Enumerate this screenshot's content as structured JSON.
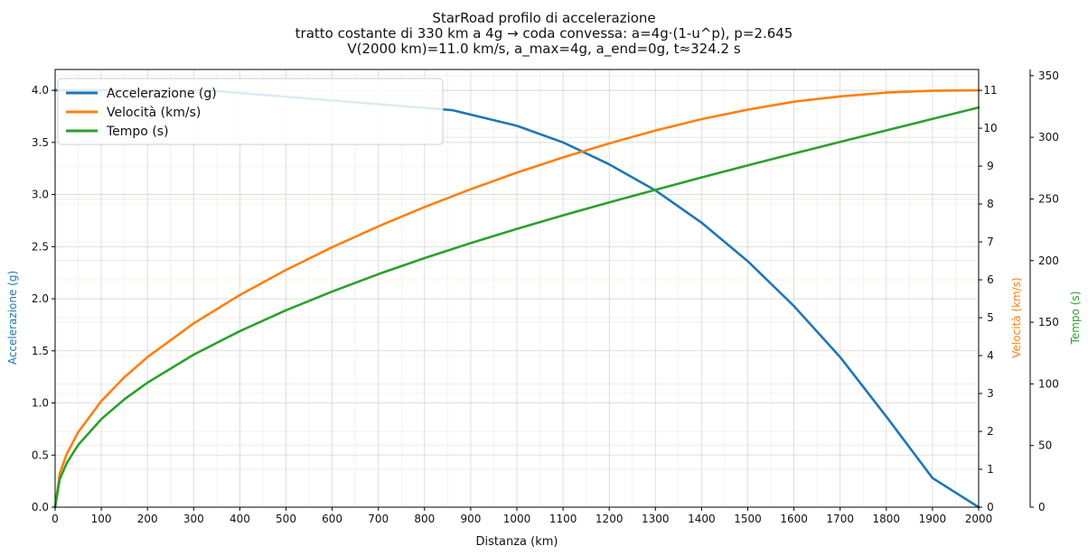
{
  "chart_data": {
    "type": "line",
    "title": "StarRoad profilo di accelerazione",
    "subtitle_line1": "tratto costante di 330 km a 4g → coda convessa: a=4g·(1-u^p), p=2.645",
    "subtitle_line2": "V(2000 km)=11.0 km/s, a_max=4g, a_end=0g, t≈324.2 s",
    "xlabel": "Distanza (km)",
    "xlim": [
      0,
      2000
    ],
    "xticks": [
      "0",
      "100",
      "200",
      "300",
      "400",
      "500",
      "600",
      "700",
      "800",
      "900",
      "1000",
      "1100",
      "1200",
      "1300",
      "1400",
      "1500",
      "1600",
      "1700",
      "1800",
      "1900",
      "2000"
    ],
    "axes": {
      "left": {
        "label": "Accelerazione (g)",
        "color": "#1f77b4",
        "lim": [
          0,
          4.2
        ],
        "ticks": [
          "0.0",
          "0.5",
          "1.0",
          "1.5",
          "2.0",
          "2.5",
          "3.0",
          "3.5",
          "4.0"
        ]
      },
      "right1": {
        "label": "Velocità (km/s)",
        "color": "#ff7f0e",
        "lim": [
          0,
          11.55
        ],
        "ticks": [
          "0",
          "1",
          "2",
          "3",
          "4",
          "5",
          "6",
          "7",
          "8",
          "9",
          "10",
          "11"
        ]
      },
      "right2": {
        "label": "Tempo (s)",
        "color": "#2ca02c",
        "lim": [
          0,
          355
        ],
        "ticks": [
          "0",
          "50",
          "100",
          "150",
          "200",
          "250",
          "300",
          "350"
        ]
      }
    },
    "grid": true,
    "legend_position": "top-left",
    "series": [
      {
        "name": "Accelerazione (g)",
        "axis": "left",
        "color": "#1f77b4",
        "x": [
          0,
          330,
          860,
          1000,
          1100,
          1200,
          1300,
          1400,
          1500,
          1600,
          1700,
          1800,
          1900,
          2000
        ],
        "y": [
          4.0,
          4.0,
          3.81,
          3.66,
          3.5,
          3.29,
          3.04,
          2.73,
          2.36,
          1.93,
          1.44,
          0.87,
          0.28,
          0.0
        ]
      },
      {
        "name": "Velocità (km/s)",
        "axis": "right1",
        "color": "#ff7f0e",
        "x": [
          0,
          10,
          25,
          50,
          100,
          150,
          200,
          300,
          400,
          500,
          600,
          700,
          800,
          900,
          1000,
          1100,
          1200,
          1300,
          1400,
          1500,
          1600,
          1700,
          1800,
          1900,
          2000
        ],
        "y": [
          0,
          0.89,
          1.4,
          1.98,
          2.8,
          3.43,
          3.96,
          4.85,
          5.6,
          6.26,
          6.86,
          7.41,
          7.92,
          8.39,
          8.83,
          9.23,
          9.6,
          9.94,
          10.24,
          10.49,
          10.7,
          10.84,
          10.94,
          10.99,
          11.0
        ]
      },
      {
        "name": "Tempo (s)",
        "axis": "right2",
        "color": "#2ca02c",
        "x": [
          0,
          10,
          25,
          50,
          100,
          150,
          200,
          300,
          400,
          500,
          600,
          700,
          800,
          900,
          1000,
          1100,
          1200,
          1300,
          1400,
          1500,
          1600,
          1700,
          1800,
          1900,
          2000
        ],
        "y": [
          0,
          22.6,
          35.7,
          50.5,
          71.4,
          87.5,
          101.0,
          123.7,
          142.8,
          159.7,
          174.9,
          189.0,
          202.0,
          214.2,
          225.7,
          236.7,
          247.2,
          257.4,
          267.4,
          277.2,
          286.8,
          296.3,
          305.6,
          314.9,
          324.2
        ]
      }
    ]
  }
}
